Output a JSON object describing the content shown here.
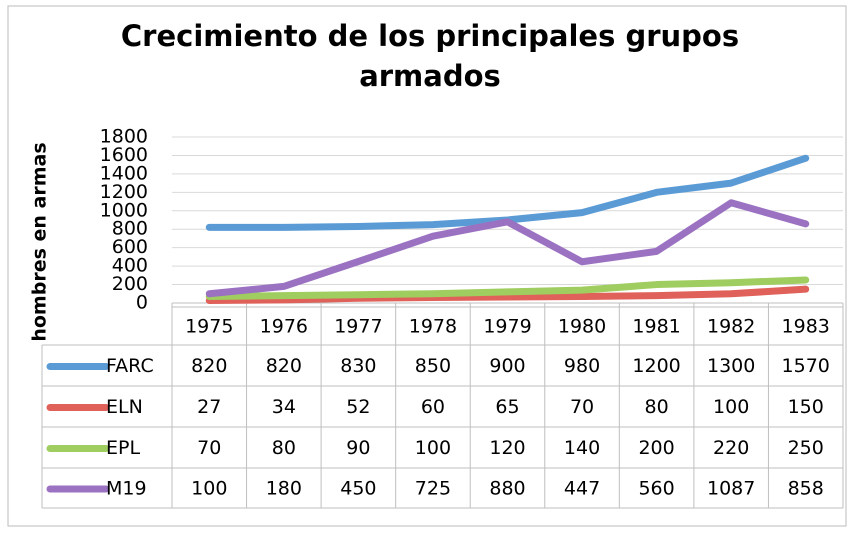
{
  "chart_data": {
    "type": "line",
    "title": [
      "Crecimiento de los principales grupos",
      "armados"
    ],
    "y_label": "hombres en armas",
    "categories": [
      "1975",
      "1976",
      "1977",
      "1978",
      "1979",
      "1980",
      "1981",
      "1982",
      "1983"
    ],
    "series": [
      {
        "name": "FARC",
        "color": "#5b9bd5",
        "values": [
          820,
          820,
          830,
          850,
          900,
          980,
          1200,
          1300,
          1570
        ]
      },
      {
        "name": "ELN",
        "color": "#e0605a",
        "values": [
          27,
          34,
          52,
          60,
          65,
          70,
          80,
          100,
          150
        ]
      },
      {
        "name": "EPL",
        "color": "#9fcd5f",
        "values": [
          70,
          80,
          90,
          100,
          120,
          140,
          200,
          220,
          250
        ]
      },
      {
        "name": "M19",
        "color": "#9b72c2",
        "values": [
          100,
          180,
          450,
          725,
          880,
          447,
          560,
          1087,
          858
        ]
      }
    ],
    "ylim": [
      0,
      1800
    ],
    "yticks": [
      0,
      200,
      400,
      600,
      800,
      1000,
      1200,
      1400,
      1600,
      1800
    ],
    "grid": true
  }
}
